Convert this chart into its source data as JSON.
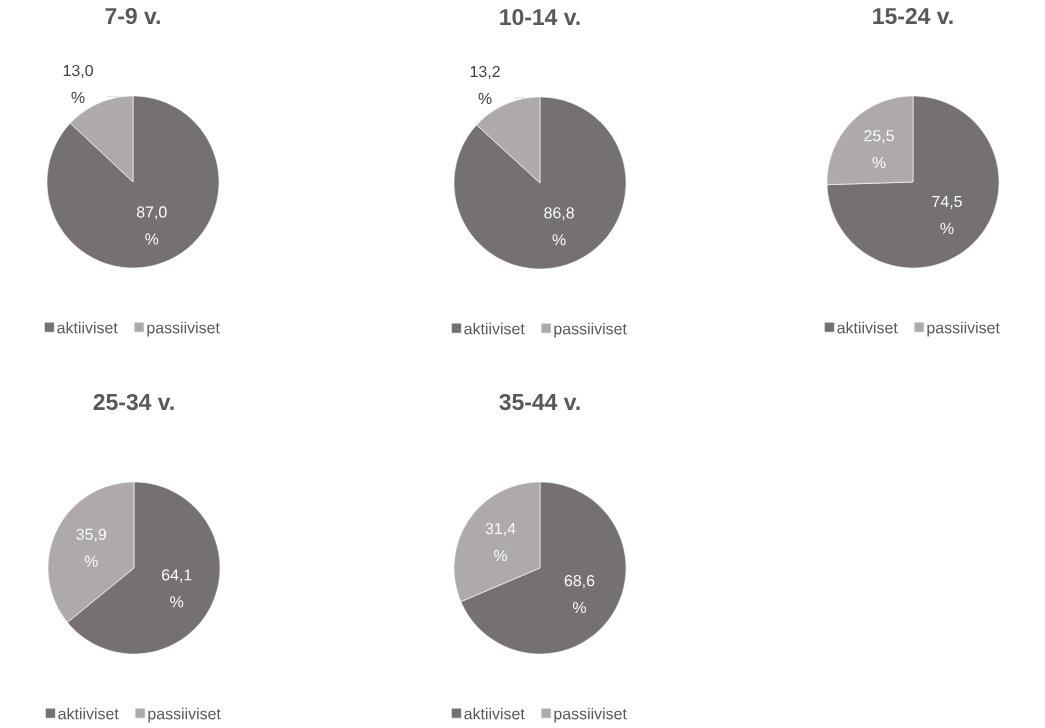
{
  "chart_data": [
    {
      "type": "pie",
      "title": "7-9 v.",
      "categories": [
        "aktiiviset",
        "passiiviset"
      ],
      "values": [
        87.0,
        13.0
      ],
      "colors": [
        "#767171",
        "#aeaaaa"
      ],
      "value_labels": [
        "87,0 %",
        "13,0 %"
      ],
      "legend": "bottom"
    },
    {
      "type": "pie",
      "title": "10-14 v.",
      "categories": [
        "aktiiviset",
        "passiiviset"
      ],
      "values": [
        86.8,
        13.2
      ],
      "colors": [
        "#767171",
        "#aeaaaa"
      ],
      "value_labels": [
        "86,8 %",
        "13,2 %"
      ],
      "legend": "bottom"
    },
    {
      "type": "pie",
      "title": "15-24 v.",
      "categories": [
        "aktiiviset",
        "passiiviset"
      ],
      "values": [
        74.5,
        25.5
      ],
      "colors": [
        "#767171",
        "#aeaaaa"
      ],
      "value_labels": [
        "74,5 %",
        "25,5 %"
      ],
      "legend": "bottom"
    },
    {
      "type": "pie",
      "title": "25-34 v.",
      "categories": [
        "aktiiviset",
        "passiiviset"
      ],
      "values": [
        64.1,
        35.9
      ],
      "colors": [
        "#767171",
        "#aeaaaa"
      ],
      "value_labels": [
        "64,1 %",
        "35,9 %"
      ],
      "legend": "bottom"
    },
    {
      "type": "pie",
      "title": "35-44 v.",
      "categories": [
        "aktiiviset",
        "passiiviset"
      ],
      "values": [
        68.6,
        31.4
      ],
      "colors": [
        "#767171",
        "#aeaaaa"
      ],
      "value_labels": [
        "68,6 %",
        "31,4 %"
      ],
      "legend": "bottom"
    }
  ]
}
